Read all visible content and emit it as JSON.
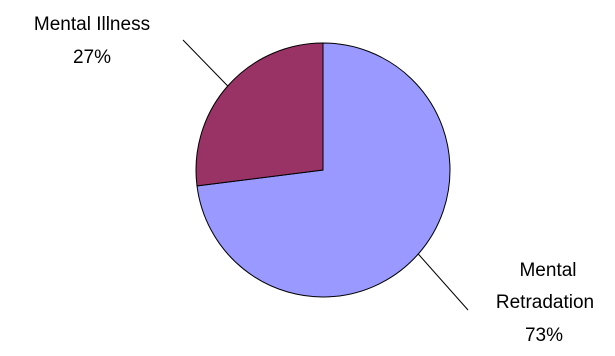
{
  "chart_data": {
    "type": "pie",
    "start_angle_deg": 0,
    "direction": "clockwise",
    "slices": [
      {
        "label_lines": [
          "Mental",
          "Retradation"
        ],
        "percent_label": "73%",
        "value": 73,
        "color": "#9999ff"
      },
      {
        "label_lines": [
          "Mental Illness"
        ],
        "percent_label": "27%",
        "value": 27,
        "color": "#993366"
      }
    ],
    "legend": "none",
    "labels": "outside-with-leader-lines"
  }
}
